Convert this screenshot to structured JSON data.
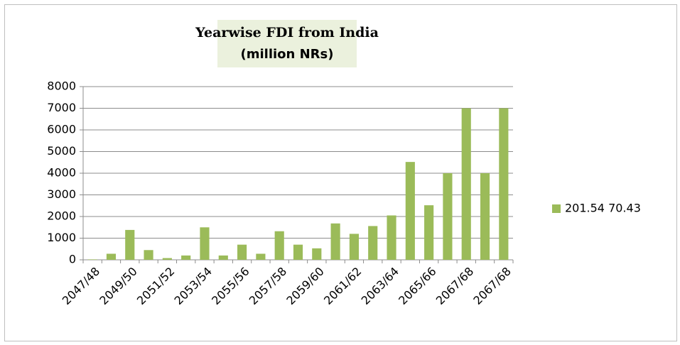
{
  "chart_data": {
    "type": "bar",
    "title": "Yearwise FDI from India",
    "subtitle": "(million NRs)",
    "categories": [
      "2047/48",
      null,
      "2049/50",
      null,
      "2051/52",
      null,
      "2053/54",
      null,
      "2055/56",
      null,
      "2057/58",
      null,
      "2059/60",
      null,
      "2061/62",
      null,
      "2063/64",
      null,
      "2065/66",
      null,
      "2067/68",
      null,
      "2067/68"
    ],
    "series": [
      {
        "name": "201.54 70.43",
        "color": "#9bbb59",
        "values": [
          20,
          280,
          1380,
          450,
          80,
          200,
          1500,
          200,
          700,
          280,
          1320,
          700,
          530,
          1680,
          1200,
          1560,
          2050,
          4520,
          2520,
          4000,
          7000,
          4000,
          7000
        ]
      }
    ],
    "ylim": [
      0,
      8000
    ],
    "yticks": [
      0,
      1000,
      2000,
      3000,
      4000,
      5000,
      6000,
      7000,
      8000
    ],
    "grid": true,
    "legend": "right"
  }
}
